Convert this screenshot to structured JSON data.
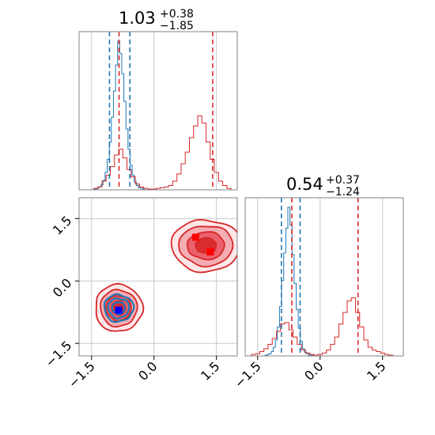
{
  "chart_data": [
    {
      "type": "histogram",
      "panel": "marginal-x",
      "title": {
        "main": "1.03",
        "upper": "+0.38",
        "lower": "−1.85"
      },
      "xlim": [
        -1.8,
        2.0
      ],
      "grid": true,
      "series": [
        {
          "color": "#1f77b4",
          "bins": [
            -1.4,
            -1.35,
            -1.3,
            -1.25,
            -1.2,
            -1.15,
            -1.1,
            -1.05,
            -1.0,
            -0.95,
            -0.9,
            -0.85,
            -0.8,
            -0.75,
            -0.7,
            -0.65,
            -0.6,
            -0.55,
            -0.5,
            -0.45,
            -0.4,
            -0.35,
            -0.3,
            -0.25,
            -0.2
          ],
          "counts": [
            1,
            2,
            4,
            7,
            13,
            24,
            42,
            66,
            100,
            136,
            172,
            205,
            188,
            160,
            122,
            84,
            56,
            34,
            20,
            11,
            6,
            3,
            2,
            1,
            0
          ]
        },
        {
          "color": "#d62728",
          "bins": [
            -1.4,
            -1.3,
            -1.2,
            -1.1,
            -1.0,
            -0.9,
            -0.8,
            -0.7,
            -0.6,
            -0.5,
            -0.4,
            -0.3,
            -0.2,
            -0.1,
            0.0,
            0.1,
            0.2,
            0.3,
            0.4,
            0.5,
            0.6,
            0.7,
            0.8,
            0.9,
            1.0,
            1.1,
            1.2,
            1.3,
            1.4,
            1.5,
            1.6,
            1.7,
            1.8
          ],
          "counts": [
            2,
            4,
            12,
            20,
            32,
            48,
            56,
            44,
            28,
            18,
            8,
            4,
            2,
            1,
            1,
            2,
            3,
            4,
            6,
            12,
            22,
            36,
            52,
            72,
            88,
            102,
            92,
            66,
            42,
            24,
            12,
            6,
            2
          ]
        }
      ],
      "vlines": [
        {
          "x": -1.07,
          "color": "#1f77b4"
        },
        {
          "x": -0.84,
          "color": "#d62728"
        },
        {
          "x": -0.58,
          "color": "#1f77b4"
        },
        {
          "x": 1.41,
          "color": "#d62728"
        }
      ],
      "xticks": [
        -1.5,
        0.0,
        1.5
      ]
    },
    {
      "type": "contour",
      "panel": "joint",
      "xlim": [
        -1.8,
        2.0
      ],
      "ylim": [
        -1.8,
        2.0
      ],
      "xticks": [
        "−1.5",
        "0.0",
        "1.5"
      ],
      "yticks": [
        "−1.5",
        "0.0",
        "1.5"
      ],
      "grid": true,
      "clusters": [
        {
          "color": "#1f77b4",
          "center": [
            -0.85,
            -0.65
          ],
          "spread": [
            0.28,
            0.26
          ]
        },
        {
          "color": "#d62728",
          "center": [
            -0.85,
            -0.65
          ],
          "spread": [
            0.42,
            0.42
          ]
        },
        {
          "color": "#d62728",
          "center": [
            1.25,
            0.85
          ],
          "spread": [
            0.62,
            0.46
          ]
        }
      ],
      "markers": [
        {
          "x": -0.85,
          "y": -0.7,
          "color": "#0000ff"
        },
        {
          "x": 1.0,
          "y": 1.05,
          "color": "#ff0000"
        },
        {
          "x": 1.35,
          "y": 0.7,
          "color": "#ff0000"
        }
      ]
    },
    {
      "type": "histogram",
      "panel": "marginal-y",
      "title": {
        "main": "0.54",
        "upper": "+0.37",
        "lower": "−1.24"
      },
      "xlim": [
        -1.8,
        2.0
      ],
      "xticks": [
        "−1.5",
        "0.0",
        "1.5"
      ],
      "grid": true,
      "series": [
        {
          "color": "#1f77b4",
          "bins": [
            -1.3,
            -1.25,
            -1.2,
            -1.15,
            -1.1,
            -1.05,
            -1.0,
            -0.95,
            -0.9,
            -0.85,
            -0.8,
            -0.75,
            -0.7,
            -0.65,
            -0.6,
            -0.55,
            -0.5,
            -0.45,
            -0.4,
            -0.35,
            -0.3,
            -0.25,
            -0.2,
            -0.15
          ],
          "counts": [
            1,
            2,
            3,
            6,
            12,
            22,
            40,
            68,
            104,
            142,
            176,
            205,
            180,
            140,
            100,
            64,
            38,
            20,
            10,
            5,
            3,
            1,
            1,
            0
          ]
        },
        {
          "color": "#d62728",
          "bins": [
            -1.6,
            -1.5,
            -1.4,
            -1.3,
            -1.2,
            -1.1,
            -1.0,
            -0.9,
            -0.8,
            -0.7,
            -0.6,
            -0.5,
            -0.4,
            -0.3,
            -0.2,
            -0.1,
            0.0,
            0.1,
            0.2,
            0.3,
            0.4,
            0.5,
            0.6,
            0.7,
            0.8,
            0.9,
            1.0,
            1.1,
            1.2,
            1.3,
            1.4,
            1.5,
            1.6,
            1.7
          ],
          "counts": [
            2,
            3,
            6,
            10,
            16,
            24,
            34,
            44,
            46,
            36,
            26,
            16,
            8,
            4,
            2,
            1,
            2,
            4,
            8,
            16,
            26,
            44,
            60,
            76,
            80,
            60,
            40,
            22,
            12,
            8,
            6,
            4,
            2,
            1
          ]
        }
      ],
      "vlines": [
        {
          "x": -0.93,
          "color": "#1f77b4"
        },
        {
          "x": -0.68,
          "color": "#d62728"
        },
        {
          "x": -0.48,
          "color": "#1f77b4"
        },
        {
          "x": 0.91,
          "color": "#d62728"
        }
      ]
    }
  ]
}
